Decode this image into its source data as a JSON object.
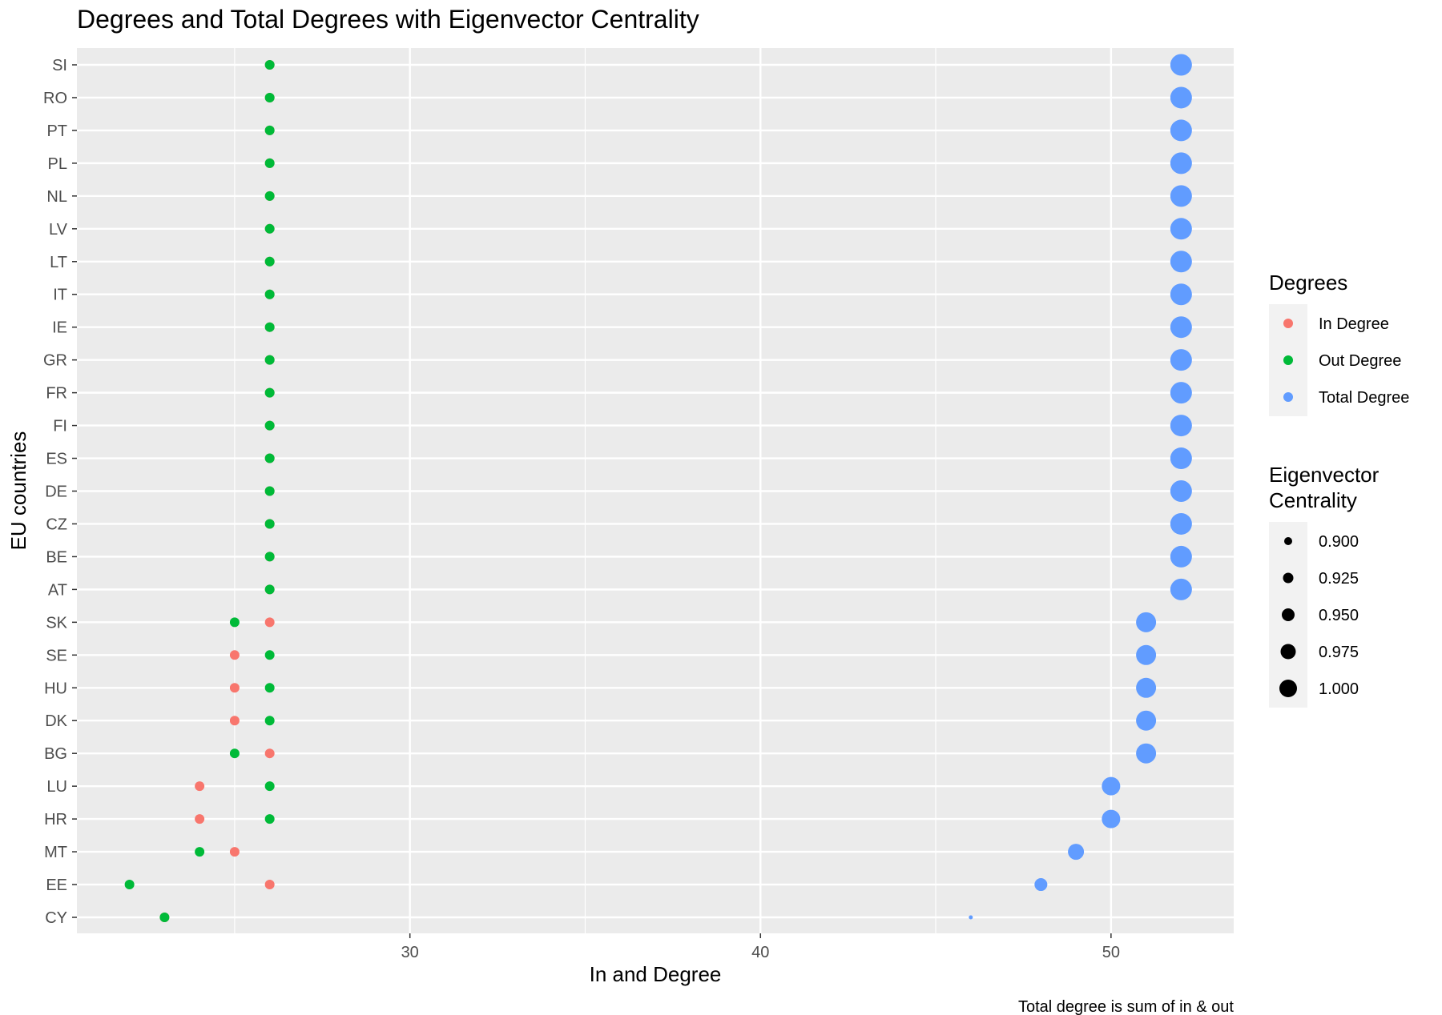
{
  "chart_data": {
    "type": "scatter",
    "title": "Degrees and Total Degrees with Eigenvector Centrality",
    "xlabel": "In and Degree",
    "ylabel": "EU countries",
    "caption": "Total degree is sum of in & out",
    "xlim": [
      20.5,
      53.5
    ],
    "x_ticks": [
      30,
      40,
      50
    ],
    "grid": true,
    "categories": [
      "CY",
      "EE",
      "MT",
      "HR",
      "LU",
      "BG",
      "DK",
      "HU",
      "SE",
      "SK",
      "AT",
      "BE",
      "CZ",
      "DE",
      "ES",
      "FI",
      "FR",
      "GR",
      "IE",
      "IT",
      "LT",
      "LV",
      "NL",
      "PL",
      "PT",
      "RO",
      "SI"
    ],
    "series": [
      {
        "name": "In Degree",
        "color": "#F8766D",
        "x": [
          23,
          26,
          25,
          24,
          24,
          26,
          25,
          25,
          25,
          26,
          26,
          26,
          26,
          26,
          26,
          26,
          26,
          26,
          26,
          26,
          26,
          26,
          26,
          26,
          26,
          26,
          26
        ]
      },
      {
        "name": "Out Degree",
        "color": "#00BA38",
        "x": [
          23,
          22,
          24,
          26,
          26,
          25,
          26,
          26,
          26,
          25,
          26,
          26,
          26,
          26,
          26,
          26,
          26,
          26,
          26,
          26,
          26,
          26,
          26,
          26,
          26,
          26,
          26
        ]
      },
      {
        "name": "Total Degree",
        "color": "#619CFF",
        "x": [
          46,
          48,
          49,
          50,
          50,
          51,
          51,
          51,
          51,
          51,
          52,
          52,
          52,
          52,
          52,
          52,
          52,
          52,
          52,
          52,
          52,
          52,
          52,
          52,
          52,
          52,
          52
        ]
      }
    ],
    "eigenvector_centrality": [
      0.89,
      0.945,
      0.965,
      0.98,
      0.98,
      0.99,
      0.99,
      0.99,
      0.99,
      0.99,
      1.0,
      1.0,
      1.0,
      1.0,
      1.0,
      1.0,
      1.0,
      1.0,
      1.0,
      1.0,
      1.0,
      1.0,
      1.0,
      1.0,
      1.0,
      1.0,
      1.0
    ],
    "legend": {
      "placement": "right",
      "color_title": "Degrees",
      "color_items": [
        "In Degree",
        "Out Degree",
        "Total Degree"
      ],
      "size_title": [
        "Eigenvector",
        "Centrality"
      ],
      "size_items": [
        "0.900",
        "0.925",
        "0.950",
        "0.975",
        "1.000"
      ],
      "size_values": [
        0.9,
        0.925,
        0.95,
        0.975,
        1.0
      ]
    }
  }
}
